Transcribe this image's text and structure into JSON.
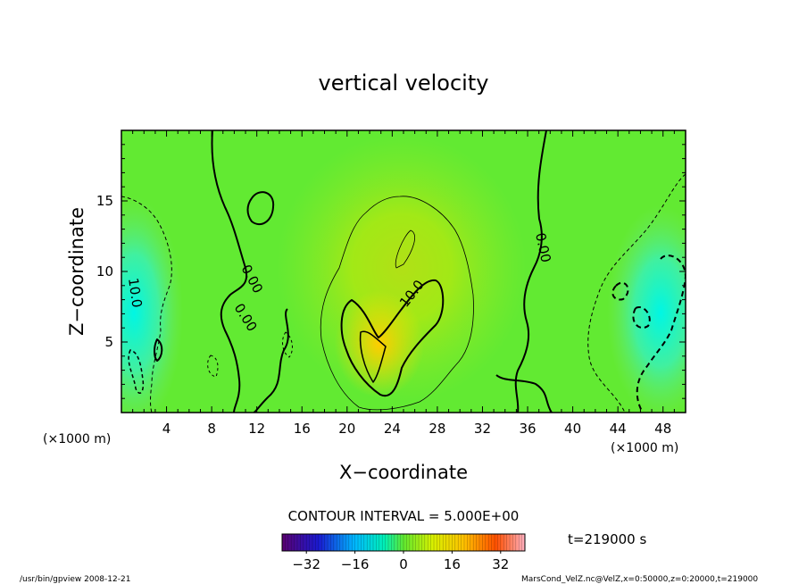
{
  "chart_data": {
    "type": "heatmap",
    "title": "vertical velocity",
    "xlabel": "X−coordinate",
    "ylabel": "Z−coordinate",
    "x_unit_left": "(×1000 m)",
    "x_unit_right": "(×1000 m)",
    "xlim": [
      0,
      50
    ],
    "ylim": [
      0,
      20
    ],
    "x_ticks": [
      4,
      8,
      12,
      16,
      20,
      24,
      28,
      32,
      36,
      40,
      44,
      48
    ],
    "x_tick_labels": [
      "4",
      "8",
      "12",
      "16",
      "20",
      "24",
      "28",
      "32",
      "36",
      "40",
      "44",
      "48"
    ],
    "y_ticks": [
      5,
      10,
      15
    ],
    "y_tick_labels": [
      "5",
      "10",
      "15"
    ],
    "contour_interval_text": "CONTOUR INTERVAL = 5.000E+00",
    "contour_interval": 5,
    "contour_labels": [
      "0.00",
      "0.00",
      "10.0",
      "0.00",
      "10.0"
    ],
    "colorbar": {
      "min": -40,
      "max": 40,
      "tick_values": [
        -32,
        -16,
        0,
        16,
        32
      ],
      "tick_labels": [
        "−32",
        "−16",
        "0",
        "16",
        "32"
      ]
    },
    "time_label": "t=219000  s",
    "footer_left": "/usr/bin/gpview  2008-12-21",
    "footer_right": "MarsCond_VelZ.nc@VelZ,x=0:50000,z=0:20000,t=219000",
    "features": [
      {
        "kind": "updraft",
        "x": 23,
        "z": 6,
        "peak": 16
      },
      {
        "kind": "downdraft",
        "x": 1.5,
        "z": 6,
        "peak": -13
      },
      {
        "kind": "downdraft",
        "x": 48,
        "z": 6,
        "peak": -13
      }
    ]
  }
}
